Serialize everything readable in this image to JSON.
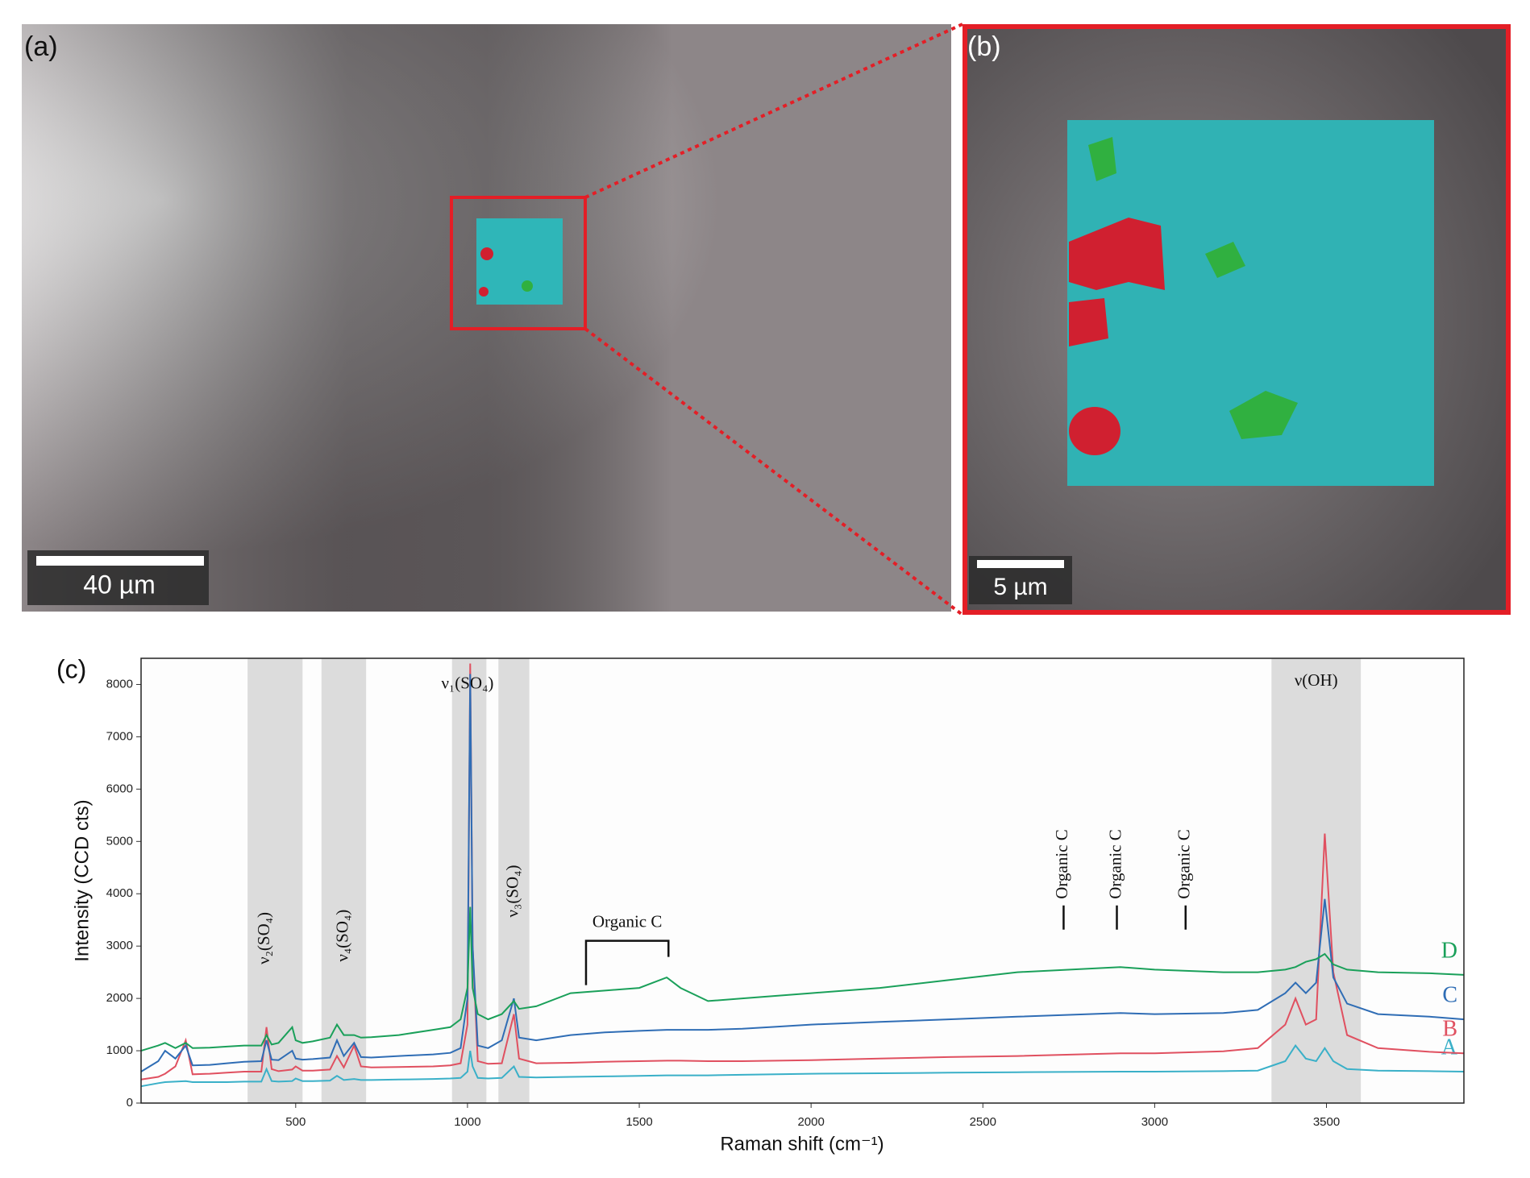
{
  "panels": {
    "a": {
      "label": "(a)",
      "scale": "40 µm"
    },
    "b": {
      "label": "(b)",
      "scale": "5 µm"
    }
  },
  "chart_data": {
    "type": "line",
    "panel_label": "(c)",
    "x_label": "Raman shift (cm⁻¹)",
    "y_label": "Intensity (CCD cts)",
    "xlim": [
      50,
      3900
    ],
    "ylim": [
      0,
      8500
    ],
    "xticks": [
      500,
      1000,
      1500,
      2000,
      2500,
      3000,
      3500
    ],
    "yticks": [
      0,
      1000,
      2000,
      3000,
      4000,
      5000,
      6000,
      7000,
      8000
    ],
    "x": [
      50,
      100,
      120,
      150,
      180,
      200,
      250,
      300,
      350,
      400,
      415,
      430,
      450,
      490,
      500,
      520,
      550,
      600,
      620,
      640,
      670,
      690,
      720,
      800,
      900,
      950,
      980,
      1000,
      1008,
      1015,
      1030,
      1060,
      1100,
      1135,
      1150,
      1200,
      1300,
      1400,
      1500,
      1580,
      1620,
      1700,
      1800,
      1900,
      2000,
      2200,
      2400,
      2600,
      2900,
      3000,
      3200,
      3300,
      3380,
      3410,
      3440,
      3470,
      3495,
      3520,
      3560,
      3650,
      3800,
      3900
    ],
    "series": [
      {
        "name": "A",
        "color": "#3ab0c8",
        "values": [
          320,
          380,
          400,
          410,
          420,
          400,
          400,
          400,
          410,
          410,
          650,
          420,
          410,
          420,
          470,
          420,
          420,
          430,
          520,
          440,
          460,
          440,
          440,
          450,
          460,
          470,
          480,
          600,
          1000,
          700,
          480,
          470,
          480,
          700,
          500,
          490,
          500,
          510,
          520,
          530,
          530,
          530,
          540,
          550,
          560,
          570,
          580,
          590,
          600,
          600,
          610,
          620,
          800,
          1100,
          850,
          800,
          1050,
          800,
          650,
          620,
          610,
          600
        ]
      },
      {
        "name": "B",
        "color": "#e05060",
        "values": [
          450,
          500,
          560,
          700,
          1200,
          550,
          560,
          580,
          600,
          600,
          1450,
          650,
          610,
          640,
          700,
          620,
          620,
          640,
          900,
          680,
          1100,
          700,
          680,
          690,
          700,
          720,
          760,
          1500,
          8400,
          3000,
          800,
          750,
          760,
          1700,
          850,
          760,
          770,
          790,
          800,
          810,
          810,
          800,
          800,
          810,
          820,
          850,
          880,
          900,
          950,
          950,
          990,
          1050,
          1500,
          2000,
          1500,
          1600,
          5150,
          2500,
          1300,
          1050,
          980,
          950
        ]
      },
      {
        "name": "C",
        "color": "#2f6db5",
        "values": [
          600,
          800,
          1000,
          850,
          1100,
          720,
          730,
          760,
          790,
          800,
          1200,
          830,
          820,
          1000,
          850,
          830,
          840,
          870,
          1200,
          900,
          1150,
          880,
          870,
          900,
          930,
          960,
          1050,
          2000,
          8200,
          3000,
          1100,
          1050,
          1200,
          2000,
          1250,
          1200,
          1300,
          1350,
          1380,
          1400,
          1400,
          1400,
          1420,
          1460,
          1500,
          1550,
          1600,
          1650,
          1720,
          1700,
          1720,
          1780,
          2100,
          2300,
          2100,
          2300,
          3900,
          2400,
          1900,
          1700,
          1650,
          1600
        ]
      },
      {
        "name": "D",
        "color": "#1aa05a",
        "values": [
          1000,
          1100,
          1150,
          1050,
          1150,
          1050,
          1060,
          1080,
          1100,
          1100,
          1300,
          1120,
          1150,
          1450,
          1200,
          1150,
          1180,
          1250,
          1500,
          1300,
          1300,
          1250,
          1260,
          1300,
          1400,
          1450,
          1600,
          2200,
          3750,
          2200,
          1700,
          1600,
          1700,
          1950,
          1800,
          1850,
          2100,
          2150,
          2200,
          2400,
          2200,
          1950,
          2000,
          2050,
          2100,
          2200,
          2350,
          2500,
          2600,
          2550,
          2500,
          2500,
          2550,
          2600,
          2700,
          2750,
          2850,
          2650,
          2550,
          2500,
          2480,
          2450
        ]
      }
    ],
    "bands": [
      [
        360,
        520
      ],
      [
        575,
        705
      ],
      [
        955,
        1055
      ],
      [
        1090,
        1180
      ],
      [
        3340,
        3600
      ]
    ],
    "annotations": [
      {
        "text": "ν₂(SO₄)",
        "x": 412,
        "y": 2650,
        "rotate": true
      },
      {
        "text": "ν₄(SO₄)",
        "x": 640,
        "y": 2700,
        "rotate": true
      },
      {
        "text": "ν₁(SO₄)",
        "x": 1000,
        "y": 8000,
        "rotate": false
      },
      {
        "text": "ν₃(SO₄)",
        "x": 1135,
        "y": 3550,
        "rotate": true
      },
      {
        "text": "ν(OH)",
        "x": 3470,
        "y": 8050,
        "rotate": false
      },
      {
        "text": "Organic C",
        "x": 2735,
        "y": 3900,
        "rotate": true
      },
      {
        "text": "Organic C",
        "x": 2890,
        "y": 3900,
        "rotate": true
      },
      {
        "text": "Organic C",
        "x": 3090,
        "y": 3900,
        "rotate": true
      }
    ],
    "bracket": {
      "text": "Organic C",
      "x": [
        1345,
        1585
      ],
      "y": 3100
    }
  }
}
